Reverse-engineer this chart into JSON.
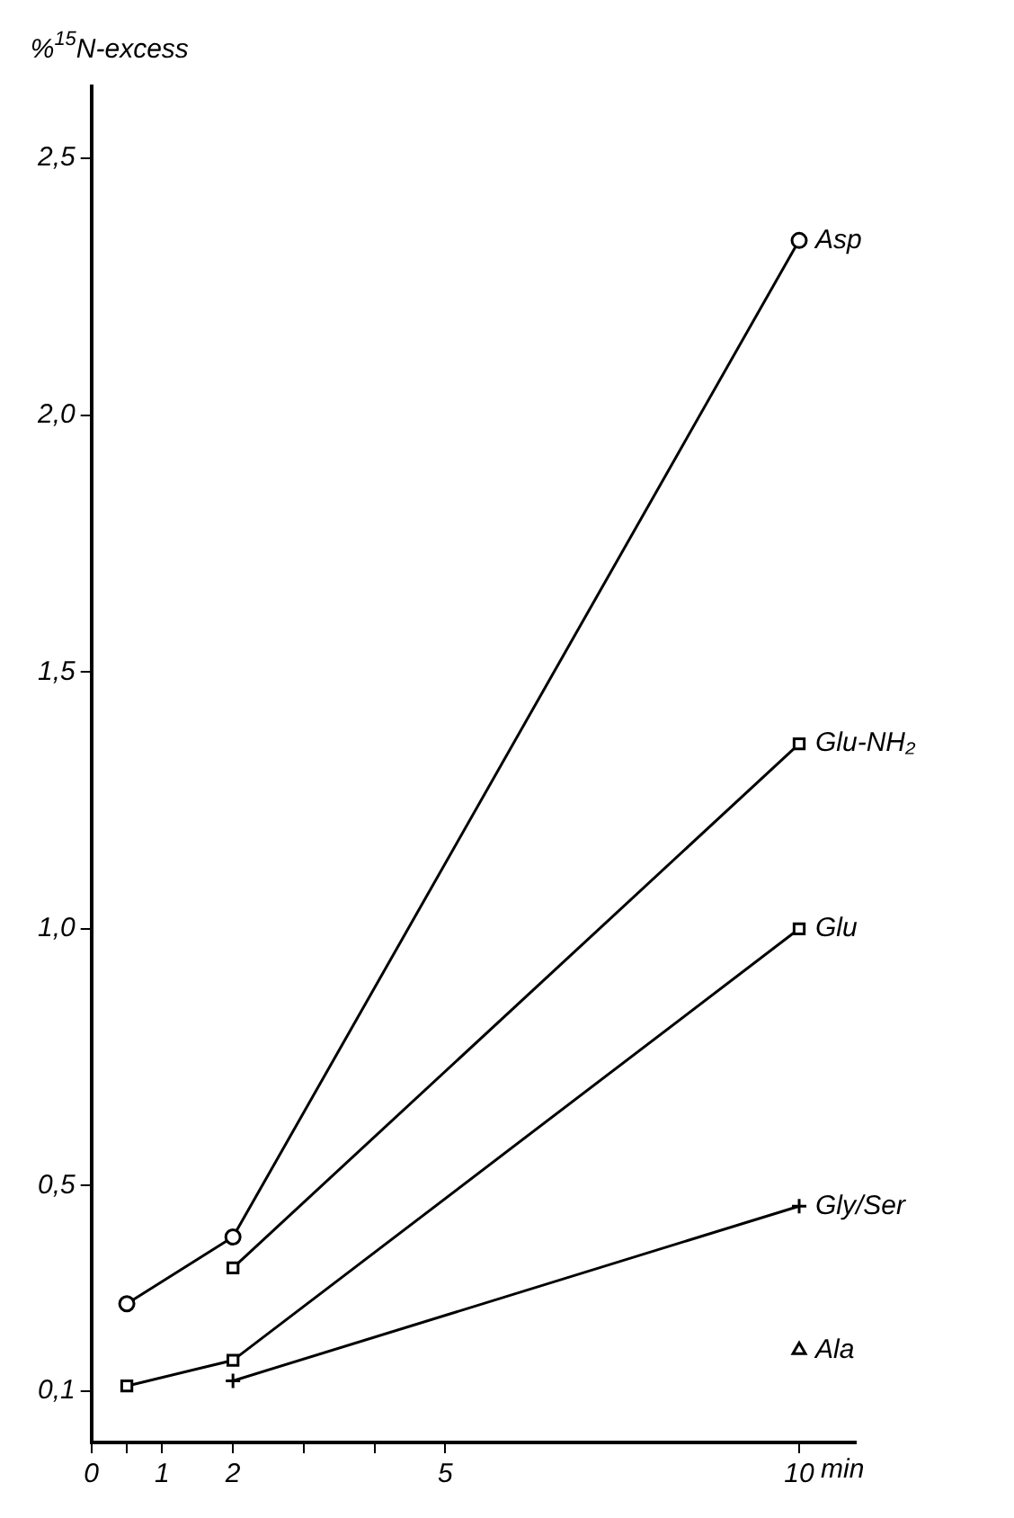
{
  "chart_data": {
    "type": "line",
    "ylabel": "%$^{15}$N-excess",
    "xlabel": "min",
    "xlim": [
      0,
      10.8
    ],
    "xticks": [
      0,
      {
        "value": 0.5,
        "label": null
      },
      1,
      2,
      {
        "value": 3,
        "label": null
      },
      {
        "value": 4,
        "label": null
      },
      5,
      10
    ],
    "ylim": [
      0,
      2.64
    ],
    "yticks": [
      {
        "value": 0.1,
        "label": "0,1"
      },
      {
        "value": 0.5,
        "label": "0,5"
      },
      {
        "value": 1.0,
        "label": "1,0"
      },
      {
        "value": 1.5,
        "label": "1,5"
      },
      {
        "value": 2.0,
        "label": "2,0"
      },
      {
        "value": 2.5,
        "label": "2,5"
      }
    ],
    "grid": false,
    "legend": false,
    "line_style": "solid",
    "series": [
      {
        "name": "Asp",
        "color": "#000000",
        "marker": "circle",
        "x": [
          0.5,
          2,
          10
        ],
        "values": [
          0.27,
          0.4,
          2.34
        ]
      },
      {
        "name": "Glu-NH₂",
        "color": "#000000",
        "marker": "square",
        "x": [
          2,
          10
        ],
        "values": [
          0.34,
          1.36
        ]
      },
      {
        "name": "Glu",
        "color": "#000000",
        "marker": "square",
        "x": [
          0.5,
          2,
          10
        ],
        "values": [
          0.11,
          0.16,
          1.0
        ]
      },
      {
        "name": "Gly/Ser",
        "color": "#000000",
        "marker": "cross",
        "x": [
          2,
          10
        ],
        "values": [
          0.12,
          0.46
        ]
      },
      {
        "name": "Ala",
        "type": "scatter",
        "color": "#000000",
        "marker": "triangle",
        "x": [
          10
        ],
        "values": [
          0.18
        ]
      }
    ]
  }
}
